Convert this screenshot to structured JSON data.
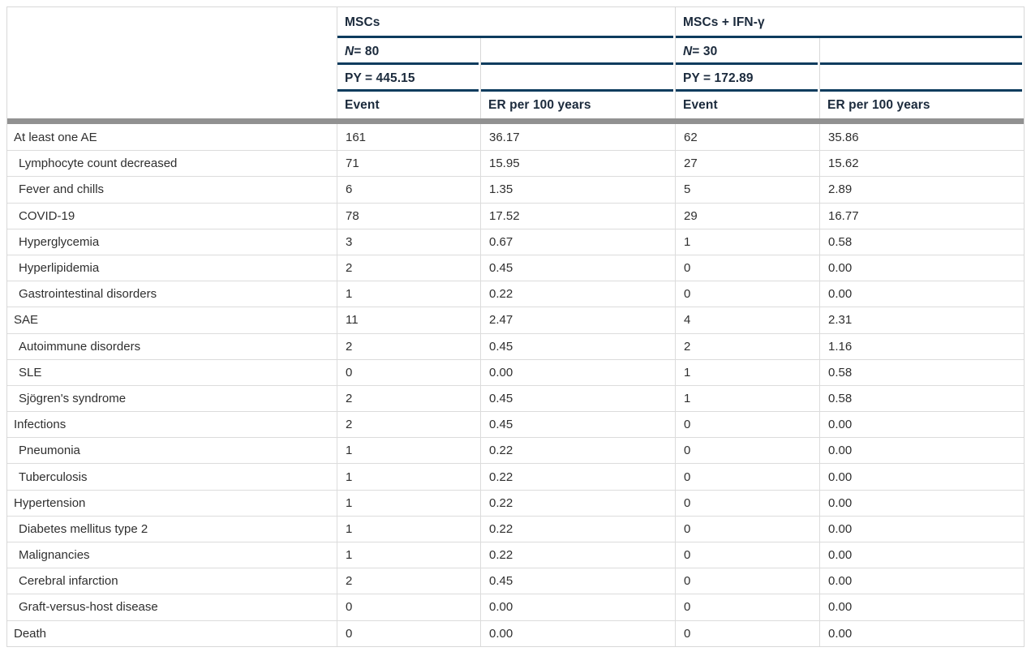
{
  "colors": {
    "rule_navy": "#0d3c5e",
    "divider_gray": "#919191",
    "grid_light_gray": "#d8d8d8",
    "header_text": "#1b2a3c",
    "body_text": "#2f2f2f"
  },
  "table": {
    "groups": [
      {
        "title": "MSCs",
        "n_label": "N",
        "n_value": " = 80",
        "py": "PY = 445.15"
      },
      {
        "title": "MSCs + IFN-γ",
        "n_label": "N",
        "n_value": " = 30",
        "py": "PY = 172.89"
      }
    ],
    "columns": [
      "Event",
      "ER per 100 years",
      "Event",
      "ER per 100 years"
    ],
    "rows": [
      {
        "label": "At least one AE",
        "label_class": "cell lbl",
        "event1": "161",
        "er1": "36.17",
        "event2": "62",
        "er2": "35.86"
      },
      {
        "label": "Lymphocyte count decreased",
        "label_class": "cell lbl indent",
        "event1": "71",
        "er1": "15.95",
        "event2": "27",
        "er2": "15.62"
      },
      {
        "label": "Fever and chills",
        "label_class": "cell lbl indent",
        "event1": "6",
        "er1": "1.35",
        "event2": "5",
        "er2": "2.89"
      },
      {
        "label": "COVID-19",
        "label_class": "cell lbl indent",
        "event1": "78",
        "er1": "17.52",
        "event2": "29",
        "er2": "16.77"
      },
      {
        "label": "Hyperglycemia",
        "label_class": "cell lbl indent",
        "event1": "3",
        "er1": "0.67",
        "event2": "1",
        "er2": "0.58"
      },
      {
        "label": "Hyperlipidemia",
        "label_class": "cell lbl indent",
        "event1": "2",
        "er1": "0.45",
        "event2": "0",
        "er2": "0.00"
      },
      {
        "label": "Gastrointestinal disorders",
        "label_class": "cell lbl indent",
        "event1": "1",
        "er1": "0.22",
        "event2": "0",
        "er2": "0.00"
      },
      {
        "label": "SAE",
        "label_class": "cell lbl",
        "event1": "11",
        "er1": "2.47",
        "event2": "4",
        "er2": "2.31"
      },
      {
        "label": "Autoimmune disorders",
        "label_class": "cell lbl indent",
        "event1": "2",
        "er1": "0.45",
        "event2": "2",
        "er2": "1.16"
      },
      {
        "label": "SLE",
        "label_class": "cell lbl indent",
        "event1": "0",
        "er1": "0.00",
        "event2": "1",
        "er2": "0.58"
      },
      {
        "label": "Sjögren's syndrome",
        "label_class": "cell lbl indent",
        "event1": "2",
        "er1": "0.45",
        "event2": "1",
        "er2": "0.58"
      },
      {
        "label": "Infections",
        "label_class": "cell lbl",
        "event1": "2",
        "er1": "0.45",
        "event2": "0",
        "er2": "0.00"
      },
      {
        "label": "Pneumonia",
        "label_class": "cell lbl indent",
        "event1": "1",
        "er1": "0.22",
        "event2": "0",
        "er2": "0.00"
      },
      {
        "label": "Tuberculosis",
        "label_class": "cell lbl indent",
        "event1": "1",
        "er1": "0.22",
        "event2": "0",
        "er2": "0.00"
      },
      {
        "label": "Hypertension",
        "label_class": "cell lbl",
        "event1": "1",
        "er1": "0.22",
        "event2": "0",
        "er2": "0.00"
      },
      {
        "label": "Diabetes mellitus type 2",
        "label_class": "cell lbl indent",
        "event1": "1",
        "er1": "0.22",
        "event2": "0",
        "er2": "0.00"
      },
      {
        "label": "Malignancies",
        "label_class": "cell lbl indent",
        "event1": "1",
        "er1": "0.22",
        "event2": "0",
        "er2": "0.00"
      },
      {
        "label": "Cerebral infarction",
        "label_class": "cell lbl indent",
        "event1": "2",
        "er1": "0.45",
        "event2": "0",
        "er2": "0.00"
      },
      {
        "label": "Graft-versus-host disease",
        "label_class": "cell lbl indent",
        "event1": "0",
        "er1": "0.00",
        "event2": "0",
        "er2": "0.00"
      },
      {
        "label": "Death",
        "label_class": "cell lbl",
        "event1": "0",
        "er1": "0.00",
        "event2": "0",
        "er2": "0.00"
      }
    ]
  }
}
